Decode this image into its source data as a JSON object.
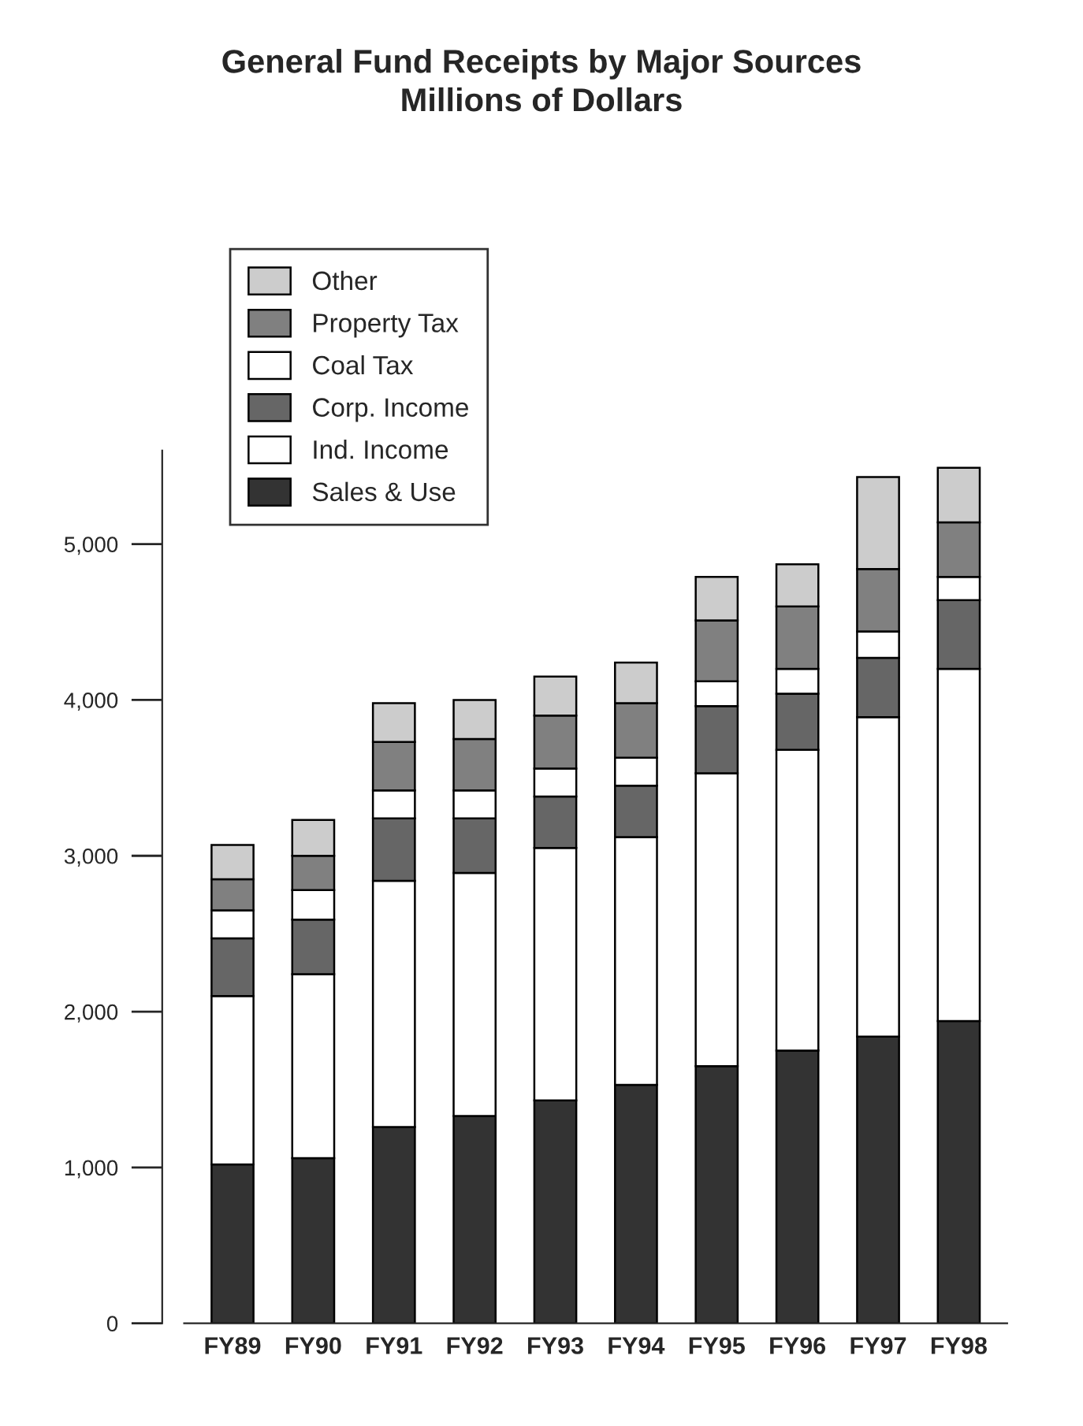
{
  "chart_data": {
    "type": "bar",
    "stacked": true,
    "title": "General Fund Receipts by Major Sources",
    "subtitle": "Millions of Dollars",
    "categories": [
      "FY89",
      "FY90",
      "FY91",
      "FY92",
      "FY93",
      "FY94",
      "FY95",
      "FY96",
      "FY97",
      "FY98"
    ],
    "series": [
      {
        "name": "Sales & Use",
        "color": "#333333",
        "values": [
          1020,
          1060,
          1260,
          1330,
          1430,
          1530,
          1650,
          1750,
          1840,
          1940
        ]
      },
      {
        "name": "Ind. Income",
        "color": "#ffffff",
        "values": [
          1080,
          1180,
          1580,
          1560,
          1620,
          1590,
          1880,
          1930,
          2050,
          2260
        ]
      },
      {
        "name": "Corp. Income",
        "color": "#666666",
        "values": [
          370,
          350,
          400,
          350,
          330,
          330,
          430,
          360,
          380,
          440
        ]
      },
      {
        "name": "Coal Tax",
        "color": "#ffffff",
        "values": [
          180,
          190,
          180,
          180,
          180,
          180,
          160,
          160,
          170,
          150
        ]
      },
      {
        "name": "Property Tax",
        "color": "#808080",
        "values": [
          200,
          220,
          310,
          330,
          340,
          350,
          390,
          400,
          400,
          350
        ]
      },
      {
        "name": "Other",
        "color": "#cccccc",
        "values": [
          220,
          230,
          250,
          250,
          250,
          260,
          280,
          270,
          590,
          350
        ]
      }
    ],
    "ylim": [
      0,
      5600
    ],
    "yticks": [
      0,
      {
        "value": 1000,
        "label": "1,000"
      },
      {
        "value": 2000,
        "label": "2,000"
      },
      {
        "value": 3000,
        "label": "3,000"
      },
      {
        "value": 4000,
        "label": "4,000"
      },
      {
        "value": 5000,
        "label": "5,000"
      }
    ],
    "grid": false,
    "legend": "top left"
  }
}
